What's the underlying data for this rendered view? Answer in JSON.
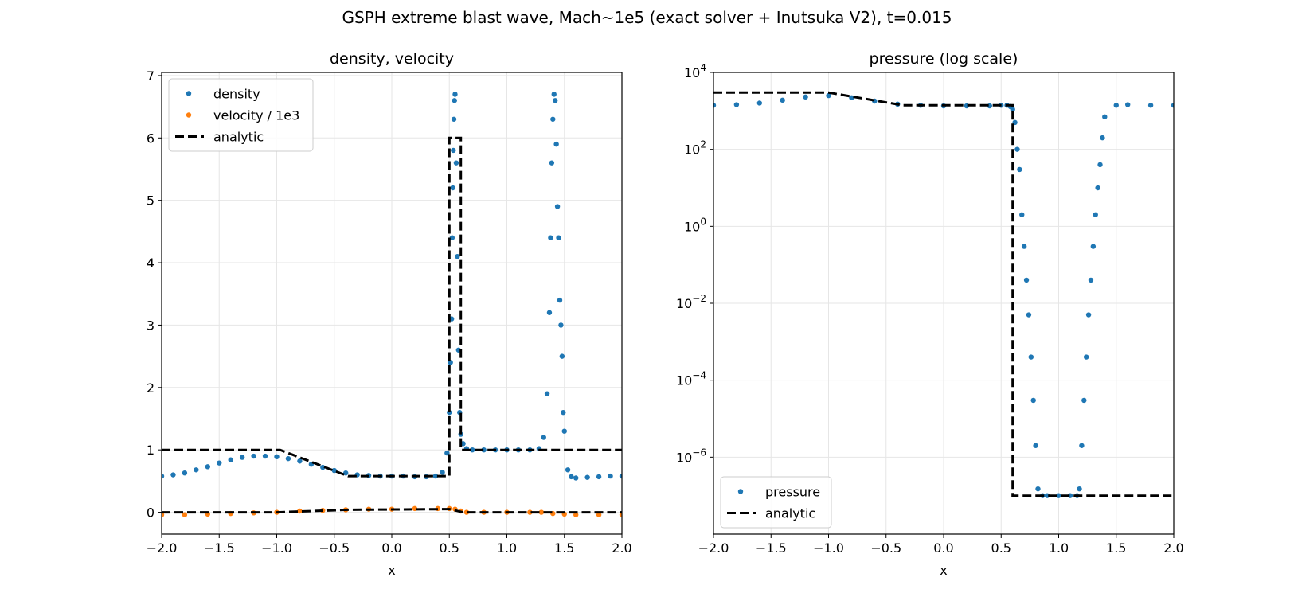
{
  "figure": {
    "suptitle": "GSPH extreme blast wave, Mach~1e5 (exact solver + Inutsuka V2), t=0.015"
  },
  "colors": {
    "density": "#1f77b4",
    "velocity": "#ff7f0e",
    "pressure": "#1f77b4",
    "analytic": "#000000",
    "grid": "#e6e6e6"
  },
  "chart_data": [
    {
      "type": "scatter",
      "title": "density, velocity",
      "xlabel": "x",
      "ylabel": "",
      "xlim": [
        -2.0,
        2.0
      ],
      "ylim": [
        -0.35,
        7.05
      ],
      "yscale": "linear",
      "xticks": [
        "−2.0",
        "−1.5",
        "−1.0",
        "−0.5",
        "0.0",
        "0.5",
        "1.0",
        "1.5",
        "2.0"
      ],
      "yticks": [
        "0",
        "1",
        "2",
        "3",
        "4",
        "5",
        "6",
        "7"
      ],
      "grid": true,
      "legend_position": "upper-left",
      "legend": [
        {
          "label": "density",
          "kind": "marker",
          "color": "#1f77b4"
        },
        {
          "label": "velocity / 1e3",
          "kind": "marker",
          "color": "#ff7f0e"
        },
        {
          "label": "analytic",
          "kind": "dashed-line",
          "color": "#000000"
        }
      ],
      "series": [
        {
          "name": "density",
          "kind": "scatter",
          "color": "#1f77b4",
          "x": [
            -2.0,
            -1.9,
            -1.8,
            -1.7,
            -1.6,
            -1.5,
            -1.4,
            -1.3,
            -1.2,
            -1.1,
            -1.0,
            -0.9,
            -0.8,
            -0.7,
            -0.6,
            -0.5,
            -0.4,
            -0.3,
            -0.2,
            -0.1,
            0.0,
            0.1,
            0.2,
            0.3,
            0.38,
            0.44,
            0.48,
            0.5,
            0.51,
            0.52,
            0.525,
            0.53,
            0.535,
            0.54,
            0.545,
            0.55,
            0.56,
            0.57,
            0.58,
            0.59,
            0.6,
            0.62,
            0.65,
            0.7,
            0.8,
            0.9,
            1.0,
            1.1,
            1.2,
            1.28,
            1.32,
            1.35,
            1.37,
            1.38,
            1.39,
            1.4,
            1.41,
            1.42,
            1.43,
            1.44,
            1.45,
            1.46,
            1.47,
            1.48,
            1.49,
            1.5,
            1.53,
            1.56,
            1.6,
            1.7,
            1.8,
            1.9,
            2.0
          ],
          "y": [
            0.58,
            0.6,
            0.63,
            0.68,
            0.73,
            0.79,
            0.84,
            0.88,
            0.9,
            0.9,
            0.89,
            0.86,
            0.82,
            0.77,
            0.72,
            0.67,
            0.63,
            0.6,
            0.59,
            0.58,
            0.58,
            0.58,
            0.57,
            0.57,
            0.58,
            0.64,
            0.95,
            1.6,
            2.4,
            3.1,
            4.4,
            5.2,
            5.8,
            6.3,
            6.6,
            6.7,
            5.6,
            4.1,
            2.6,
            1.6,
            1.25,
            1.1,
            1.02,
            1.0,
            1.0,
            1.0,
            1.0,
            1.0,
            1.0,
            1.02,
            1.2,
            1.9,
            3.2,
            4.4,
            5.6,
            6.3,
            6.7,
            6.6,
            5.9,
            4.9,
            4.4,
            3.4,
            3.0,
            2.5,
            1.6,
            1.3,
            0.68,
            0.57,
            0.55,
            0.56,
            0.57,
            0.58,
            0.58
          ]
        },
        {
          "name": "velocity / 1e3",
          "kind": "scatter",
          "color": "#ff7f0e",
          "x": [
            -2.0,
            -1.8,
            -1.6,
            -1.4,
            -1.2,
            -1.0,
            -0.8,
            -0.6,
            -0.4,
            -0.2,
            0.0,
            0.2,
            0.4,
            0.5,
            0.55,
            0.6,
            0.65,
            0.8,
            1.0,
            1.2,
            1.3,
            1.4,
            1.5,
            1.6,
            1.8,
            2.0
          ],
          "y": [
            -0.04,
            -0.04,
            -0.03,
            -0.02,
            -0.01,
            0.0,
            0.02,
            0.03,
            0.04,
            0.05,
            0.05,
            0.06,
            0.06,
            0.06,
            0.05,
            0.02,
            0.0,
            0.0,
            0.0,
            0.0,
            0.0,
            -0.02,
            -0.03,
            -0.04,
            -0.04,
            -0.04
          ]
        },
        {
          "name": "analytic",
          "kind": "dashed-line",
          "color": "#000000",
          "x": [
            -2.0,
            -0.97,
            -0.38,
            0.5,
            0.5,
            0.6,
            0.6,
            2.0
          ],
          "y": [
            1.0,
            1.0,
            0.58,
            0.58,
            6.0,
            6.0,
            1.0,
            1.0
          ]
        },
        {
          "name": "analytic",
          "kind": "dashed-line",
          "color": "#000000",
          "x": [
            -2.0,
            -1.0,
            -0.38,
            0.5,
            0.62,
            2.0
          ],
          "y": [
            0.0,
            0.0,
            0.04,
            0.05,
            0.0,
            0.0
          ]
        }
      ]
    },
    {
      "type": "scatter",
      "title": "pressure (log scale)",
      "xlabel": "x",
      "ylabel": "",
      "xlim": [
        -2.0,
        2.0
      ],
      "ylim": [
        1e-08,
        10000
      ],
      "yscale": "log",
      "xticks": [
        "−2.0",
        "−1.5",
        "−1.0",
        "−0.5",
        "0.0",
        "0.5",
        "1.0",
        "1.5",
        "2.0"
      ],
      "yticks": [
        {
          "base": "10",
          "exp": "4",
          "value": 10000
        },
        {
          "base": "10",
          "exp": "2",
          "value": 100
        },
        {
          "base": "10",
          "exp": "0",
          "value": 1
        },
        {
          "base": "10",
          "exp": "−2",
          "value": 0.01
        },
        {
          "base": "10",
          "exp": "−4",
          "value": 0.0001
        },
        {
          "base": "10",
          "exp": "−6",
          "value": 1e-06
        }
      ],
      "grid": true,
      "legend_position": "lower-left",
      "legend": [
        {
          "label": "pressure",
          "kind": "marker",
          "color": "#1f77b4"
        },
        {
          "label": "analytic",
          "kind": "dashed-line",
          "color": "#000000"
        }
      ],
      "series": [
        {
          "name": "pressure",
          "kind": "scatter",
          "color": "#1f77b4",
          "x": [
            -2.0,
            -1.8,
            -1.6,
            -1.4,
            -1.2,
            -1.0,
            -0.8,
            -0.6,
            -0.4,
            -0.2,
            0.0,
            0.2,
            0.4,
            0.5,
            0.55,
            0.58,
            0.6,
            0.62,
            0.64,
            0.66,
            0.68,
            0.7,
            0.72,
            0.74,
            0.76,
            0.78,
            0.8,
            0.82,
            0.86,
            0.9,
            1.0,
            1.1,
            1.16,
            1.18,
            1.2,
            1.22,
            1.24,
            1.26,
            1.28,
            1.3,
            1.32,
            1.34,
            1.36,
            1.38,
            1.4,
            1.5,
            1.6,
            1.8,
            2.0
          ],
          "y": [
            1400,
            1450,
            1600,
            1900,
            2300,
            2500,
            2200,
            1800,
            1500,
            1400,
            1350,
            1350,
            1350,
            1400,
            1400,
            1300,
            1100,
            500,
            100,
            30,
            2,
            0.3,
            0.04,
            0.005,
            0.0004,
            3e-05,
            2e-06,
            1.5e-07,
            1e-07,
            1e-07,
            1e-07,
            1e-07,
            1e-07,
            1.5e-07,
            2e-06,
            3e-05,
            0.0004,
            0.005,
            0.04,
            0.3,
            2,
            10,
            40,
            200,
            700,
            1400,
            1450,
            1400,
            1400
          ]
        },
        {
          "name": "analytic",
          "kind": "dashed-line",
          "color": "#000000",
          "x": [
            -2.0,
            -1.0,
            -0.35,
            0.6,
            0.6,
            2.0
          ],
          "y": [
            3000,
            3000,
            1400,
            1400,
            1e-07,
            1e-07
          ]
        }
      ]
    }
  ]
}
